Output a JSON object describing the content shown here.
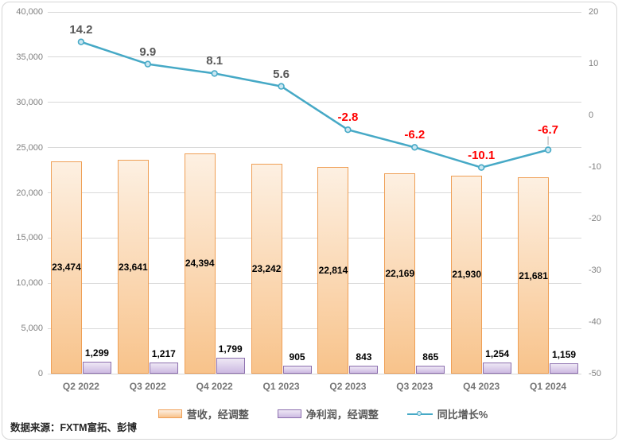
{
  "source_note": "数据来源：FXTM富拓、彭博",
  "chart_data": {
    "type": "combo",
    "title": "",
    "categories": [
      "Q2 2022",
      "Q3 2022",
      "Q4 2022",
      "Q1 2023",
      "Q2 2023",
      "Q3 2023",
      "Q4 2023",
      "Q1 2024"
    ],
    "series": [
      {
        "name": "营收，经调整",
        "type": "bar",
        "axis": "left",
        "values": [
          23474,
          23641,
          24394,
          23242,
          22814,
          22169,
          21930,
          21681
        ],
        "labels": [
          "23,474",
          "23,641",
          "24,394",
          "23,242",
          "22,814",
          "22,169",
          "21,930",
          "21,681"
        ],
        "label_position": "inside-center",
        "border_color": "#EF9F55",
        "fill_top": "#FDF0E2",
        "fill_bottom": "#F8C38B"
      },
      {
        "name": "净利润，经调整",
        "type": "bar",
        "axis": "left",
        "values": [
          1299,
          1217,
          1799,
          905,
          843,
          865,
          1254,
          1159
        ],
        "labels": [
          "1,299",
          "1,217",
          "1,799",
          "905",
          "843",
          "865",
          "1,254",
          "1,159"
        ],
        "label_position": "outside-top",
        "border_color": "#8C6FAE",
        "fill_top": "#EEE8F5",
        "fill_bottom": "#CDBAE2"
      },
      {
        "name": "同比增长%",
        "type": "line",
        "axis": "right",
        "values": [
          14.2,
          9.9,
          8.1,
          5.6,
          -2.8,
          -6.2,
          -10.1,
          -6.7
        ],
        "labels": [
          "14.2",
          "9.9",
          "8.1",
          "5.6",
          "-2.8",
          "-6.2",
          "-10.1",
          "-6.7"
        ],
        "line_color": "#46A9C6",
        "marker_fill": "#CBE7F2",
        "label_color_positive": "#595959",
        "label_color_negative": "#FF0000",
        "callout_last_label": true,
        "callout_line_color": "#A6A6A6"
      }
    ],
    "left_axis": {
      "min": 0,
      "max": 40000,
      "ticks": [
        "40,000",
        "35,000",
        "30,000",
        "25,000",
        "20,000",
        "15,000",
        "10,000",
        "5,000",
        "0"
      ]
    },
    "right_axis": {
      "min": -50,
      "max": 20,
      "ticks": [
        "20",
        "10",
        "0",
        "-10",
        "-20",
        "-30",
        "-40",
        "-50"
      ]
    },
    "grid": true,
    "gridline_color": "#D9D9D9",
    "axis_text_color": "#808080",
    "category_text_color": "#757575",
    "legend_position": "bottom"
  }
}
